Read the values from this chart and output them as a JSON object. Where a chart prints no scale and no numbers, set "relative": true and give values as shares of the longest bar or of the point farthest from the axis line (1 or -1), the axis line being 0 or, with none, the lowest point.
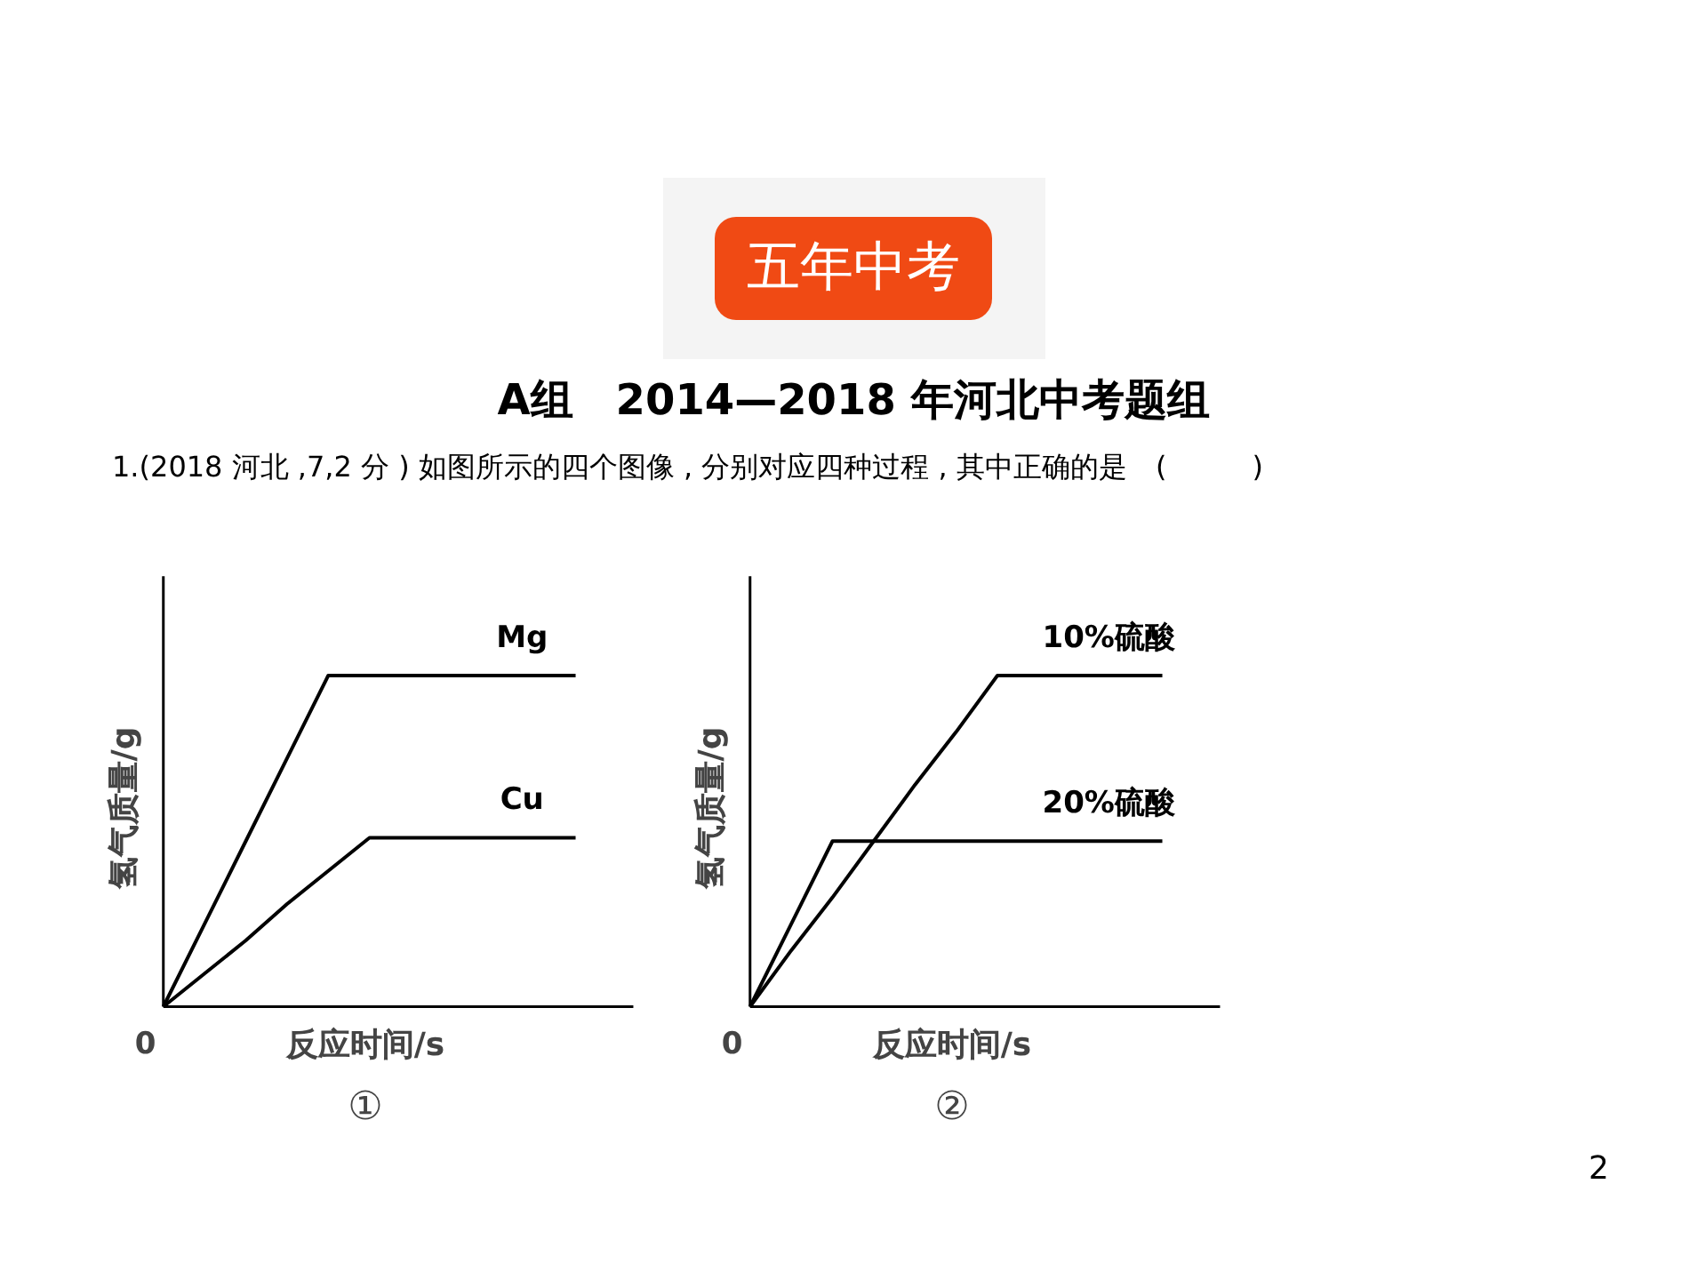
{
  "chart_data": [
    {
      "type": "other",
      "title": "五年中考",
      "subtitle": "A组　2014—2018 年河北中考题组",
      "annotations": [
        "1.(2018 河北 ,7,2 分 ) 如图所示的四个图像 , 分别对应四种过程 , 其中正确的是　(　　　)",
        "2"
      ]
    },
    {
      "type": "line",
      "relative": true,
      "tick_labels": false,
      "grid": false,
      "marker": "none",
      "xlabel": "反应时间/s",
      "ylabel": "氢气质量/g",
      "annotations": [
        "0",
        "①"
      ],
      "categories": [
        null,
        null,
        null,
        null,
        null,
        null,
        null,
        null,
        null,
        null,
        null
      ],
      "series": [
        {
          "name": "Mg",
          "color": "#000000",
          "values": [
            0,
            0.25,
            0.5,
            0.75,
            1,
            1,
            1,
            1,
            1,
            1,
            1
          ]
        },
        {
          "name": "Cu",
          "color": "#000000",
          "values": [
            0,
            0.1,
            0.2,
            0.31,
            0.41,
            0.51,
            0.51,
            0.51,
            0.51,
            0.51,
            0.51
          ]
        }
      ]
    },
    {
      "type": "line",
      "relative": true,
      "tick_labels": false,
      "grid": false,
      "marker": "none",
      "xlabel": "反应时间/s",
      "ylabel": "氢气质量/g",
      "annotations": [
        "0",
        "②"
      ],
      "categories": [
        null,
        null,
        null,
        null,
        null,
        null,
        null,
        null,
        null,
        null,
        null
      ],
      "series": [
        {
          "name": "10%硫酸",
          "color": "#000000",
          "values": [
            0,
            0.17,
            0.33,
            0.5,
            0.67,
            0.83,
            1,
            1,
            1,
            1,
            1
          ]
        },
        {
          "name": "20%硫酸",
          "color": "#000000",
          "values": [
            0,
            0.25,
            0.5,
            0.5,
            0.5,
            0.5,
            0.5,
            0.5,
            0.5,
            0.5,
            0.5
          ]
        }
      ]
    }
  ]
}
